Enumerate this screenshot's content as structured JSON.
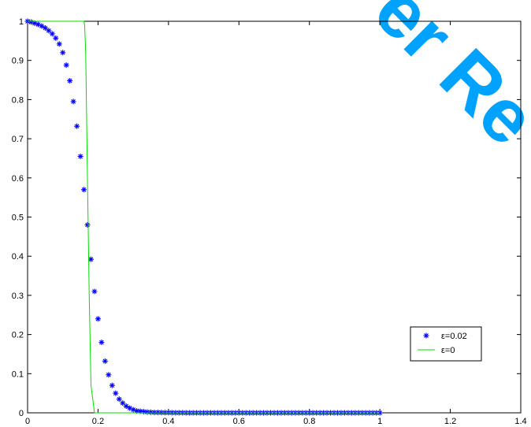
{
  "watermark": {
    "text": "er Re",
    "color": "#00a2ff"
  },
  "chart_data": {
    "type": "scatter",
    "title": "",
    "xlabel": "",
    "ylabel": "",
    "xlim": [
      0,
      1.4
    ],
    "ylim": [
      0,
      1
    ],
    "grid": false,
    "legend_position": "right",
    "x_ticks": [
      "0",
      "0.2",
      "0.4",
      "0.6",
      "0.8",
      "1",
      "1.2",
      "1.4"
    ],
    "y_ticks": [
      "0",
      "0.1",
      "0.2",
      "0.3",
      "0.4",
      "0.5",
      "0.6",
      "0.7",
      "0.8",
      "0.9",
      "1"
    ],
    "series": [
      {
        "name": "ε=0.02",
        "style": "markers",
        "marker": "asterisk",
        "color": "#0000ff",
        "x": [
          0.0,
          0.01,
          0.02,
          0.03,
          0.04,
          0.05,
          0.06,
          0.07,
          0.08,
          0.09,
          0.1,
          0.11,
          0.12,
          0.13,
          0.14,
          0.15,
          0.16,
          0.17,
          0.18,
          0.19,
          0.2,
          0.21,
          0.22,
          0.23,
          0.24,
          0.25,
          0.26,
          0.27,
          0.28,
          0.29,
          0.3,
          0.31,
          0.32,
          0.33,
          0.34,
          0.35,
          0.36,
          0.37,
          0.38,
          0.39,
          0.4,
          0.41,
          0.42,
          0.43,
          0.44,
          0.45,
          0.46,
          0.47,
          0.48,
          0.49,
          0.5,
          0.51,
          0.52,
          0.53,
          0.54,
          0.55,
          0.56,
          0.57,
          0.58,
          0.59,
          0.6,
          0.61,
          0.62,
          0.63,
          0.64,
          0.65,
          0.66,
          0.67,
          0.68,
          0.69,
          0.7,
          0.71,
          0.72,
          0.73,
          0.74,
          0.75,
          0.76,
          0.77,
          0.78,
          0.79,
          0.8,
          0.81,
          0.82,
          0.83,
          0.84,
          0.85,
          0.86,
          0.87,
          0.88,
          0.89,
          0.9,
          0.91,
          0.92,
          0.93,
          0.94,
          0.95,
          0.96,
          0.97,
          0.98,
          0.99,
          1.0
        ],
        "y": [
          1.0,
          0.998,
          0.995,
          0.992,
          0.988,
          0.983,
          0.976,
          0.968,
          0.957,
          0.942,
          0.92,
          0.888,
          0.848,
          0.795,
          0.732,
          0.655,
          0.57,
          0.48,
          0.392,
          0.31,
          0.24,
          0.18,
          0.132,
          0.097,
          0.07,
          0.05,
          0.035,
          0.025,
          0.017,
          0.012,
          0.008,
          0.005,
          0.004,
          0.003,
          0.002,
          0.0015,
          0.001,
          0.001,
          0.0008,
          0.0006,
          0.0005,
          0.0004,
          0.0003,
          0.0002,
          0.0002,
          0.0001,
          0.0001,
          0.0001,
          0.0001,
          0.0,
          0.0,
          0.0,
          0.0,
          0.0,
          0.0,
          0.0,
          0.0,
          0.0,
          0.0,
          0.0,
          0.0,
          0.0,
          0.0,
          0.0,
          0.0,
          0.0,
          0.0,
          0.0,
          0.0,
          0.0,
          0.0,
          0.0,
          0.0,
          0.0,
          0.0,
          0.0,
          0.0,
          0.0,
          0.0,
          0.0,
          0.0,
          0.0,
          0.0,
          0.0,
          0.0,
          0.0,
          0.0,
          0.0,
          0.0,
          0.0,
          0.0,
          0.0,
          0.0,
          0.0,
          0.0,
          0.0,
          0.0,
          0.0,
          0.0,
          0.0,
          0.0
        ]
      },
      {
        "name": "ε=0",
        "style": "line",
        "color": "#00dd00",
        "x": [
          0.0,
          0.16,
          0.162,
          0.165,
          0.17,
          0.175,
          0.18,
          0.19,
          0.2,
          1.0
        ],
        "y": [
          1.0,
          1.0,
          0.99,
          0.92,
          0.6,
          0.3,
          0.07,
          0.0,
          0.0,
          0.0
        ]
      }
    ]
  }
}
